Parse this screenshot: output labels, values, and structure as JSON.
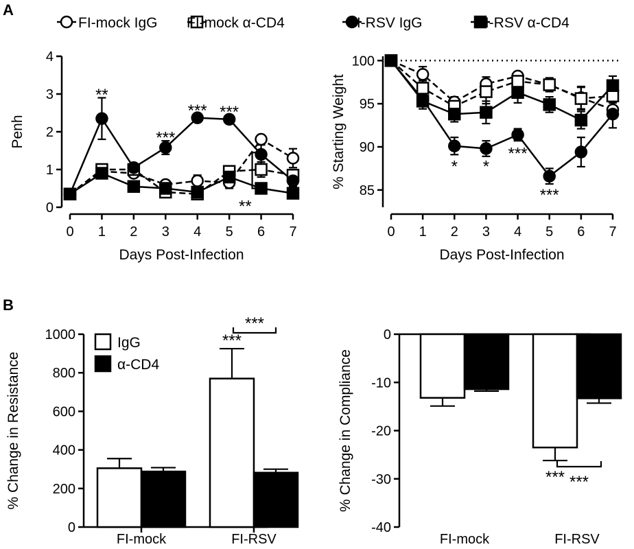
{
  "figure": {
    "panel_a_letter": "A",
    "panel_b_letter": "B",
    "legend_a": [
      {
        "label": "FI-mock IgG",
        "marker": "circle-open",
        "line": "dashed"
      },
      {
        "label": "FI-mock α-CD4",
        "marker": "square-open",
        "line": "dashed"
      },
      {
        "label": "FI-RSV IgG",
        "marker": "circle-filled",
        "line": "solid"
      },
      {
        "label": "FI-RSV α-CD4",
        "marker": "square-filled",
        "line": "solid"
      }
    ],
    "legend_b": [
      {
        "label": "IgG",
        "fill": "#ffffff"
      },
      {
        "label": "α-CD4",
        "fill": "#000000"
      }
    ]
  },
  "chart_data": [
    {
      "type": "line",
      "ylabel": "Penh",
      "xlabel": "Days Post-Infection",
      "ylim": [
        0,
        4
      ],
      "xlim": [
        0,
        7
      ],
      "x": [
        0,
        1,
        2,
        3,
        4,
        5,
        6,
        7
      ],
      "yticks": [
        "0",
        "1",
        "2",
        "3",
        "4"
      ],
      "xticks": [
        "0",
        "1",
        "2",
        "3",
        "4",
        "5",
        "6",
        "7"
      ],
      "series": [
        {
          "values": [
            0.35,
            0.95,
            0.9,
            0.6,
            0.7,
            0.65,
            1.8,
            1.3
          ],
          "err": [
            0.05,
            0.1,
            0.1,
            0.05,
            0.15,
            0.15,
            0.05,
            0.25
          ],
          "marker": "circle-open",
          "line": "dashed"
        },
        {
          "values": [
            0.35,
            1.0,
            1.0,
            0.4,
            0.35,
            0.95,
            1.0,
            0.85
          ],
          "err": [
            0.05,
            0.1,
            0.1,
            0.05,
            0.05,
            0.1,
            0.2,
            0.15
          ],
          "marker": "square-open",
          "line": "dashed"
        },
        {
          "values": [
            0.35,
            2.35,
            1.05,
            1.58,
            2.37,
            2.33,
            1.4,
            0.7
          ],
          "err": [
            0.05,
            0.55,
            0.1,
            0.18,
            0.05,
            0.05,
            0.25,
            0.15
          ],
          "marker": "circle-filled",
          "line": "solid"
        },
        {
          "values": [
            0.35,
            0.9,
            0.55,
            0.5,
            0.4,
            0.8,
            0.5,
            0.37
          ],
          "err": [
            0.05,
            0.1,
            0.05,
            0.05,
            0.05,
            0.1,
            0.05,
            0.05
          ],
          "marker": "square-filled",
          "line": "solid"
        }
      ],
      "annotations": [
        {
          "text": "**",
          "x": 1,
          "y": 3.02
        },
        {
          "text": "***",
          "x": 3,
          "y": 1.88
        },
        {
          "text": "***",
          "x": 4,
          "y": 2.6
        },
        {
          "text": "***",
          "x": 5,
          "y": 2.56
        },
        {
          "text": "**",
          "x": 5.5,
          "y": 0.06
        }
      ]
    },
    {
      "type": "line",
      "ylabel": "% Starting Weight",
      "xlabel": "Days Post-Infection",
      "ylim": [
        83,
        100.5
      ],
      "xlim": [
        0,
        7
      ],
      "x": [
        0,
        1,
        2,
        3,
        4,
        5,
        6,
        7
      ],
      "yticks": [
        "85",
        "90",
        "95",
        "100"
      ],
      "xticks": [
        "0",
        "1",
        "2",
        "3",
        "4",
        "5",
        "6",
        "7"
      ],
      "reference_line": 100,
      "series": [
        {
          "values": [
            100,
            98.4,
            95.2,
            97.3,
            98.2,
            97.2,
            95.7,
            94.3
          ],
          "err": [
            0.1,
            0.9,
            0.6,
            0.8,
            0.4,
            0.5,
            1.3,
            0.8
          ],
          "marker": "circle-open",
          "line": "dashed"
        },
        {
          "values": [
            100,
            96.8,
            94.7,
            96.4,
            97.6,
            97.2,
            95.6,
            95.9
          ],
          "err": [
            0.1,
            0.9,
            0.8,
            1.4,
            0.9,
            0.8,
            1.3,
            1.2
          ],
          "marker": "square-open",
          "line": "dashed"
        },
        {
          "values": [
            100,
            95.5,
            90.1,
            89.8,
            91.4,
            86.6,
            89.4,
            93.8
          ],
          "err": [
            0.1,
            0.6,
            1.0,
            0.9,
            0.7,
            0.9,
            1.7,
            1.6
          ],
          "marker": "circle-filled",
          "line": "solid"
        },
        {
          "values": [
            100,
            95.3,
            93.8,
            94.0,
            96.3,
            94.9,
            93.1,
            97.1
          ],
          "err": [
            0.1,
            0.9,
            0.9,
            1.3,
            1.2,
            0.9,
            1.0,
            1.1
          ],
          "marker": "square-filled",
          "line": "solid"
        }
      ],
      "annotations": [
        {
          "text": "*",
          "x": 2,
          "y": 87.9
        },
        {
          "text": "*",
          "x": 3,
          "y": 87.9
        },
        {
          "text": "***",
          "x": 4,
          "y": 89.4
        },
        {
          "text": "***",
          "x": 5,
          "y": 84.6
        }
      ]
    },
    {
      "type": "bar",
      "ylabel": "% Change in Resistance",
      "categories": [
        "FI-mock",
        "FI-RSV"
      ],
      "ylim": [
        0,
        1000
      ],
      "yticks": [
        "0",
        "200",
        "400",
        "600",
        "800",
        "1000"
      ],
      "series": [
        {
          "values": [
            305,
            770
          ],
          "err": [
            50,
            155
          ],
          "fill": "#ffffff"
        },
        {
          "values": [
            288,
            282
          ],
          "err": [
            20,
            18
          ],
          "fill": "#000000"
        }
      ],
      "annotations": [
        {
          "text": "***",
          "category": "FI-RSV",
          "series": 0
        },
        {
          "text": "***",
          "bracket": true
        }
      ]
    },
    {
      "type": "bar",
      "ylabel": "% Change in Compliance",
      "categories": [
        "FI-mock",
        "FI-RSV"
      ],
      "ylim": [
        -40,
        0
      ],
      "yticks": [
        "0",
        "-10",
        "-20",
        "-30",
        "-40"
      ],
      "series": [
        {
          "values": [
            -13.2,
            -23.5
          ],
          "err": [
            1.7,
            2.7
          ],
          "fill": "#ffffff"
        },
        {
          "values": [
            -11.4,
            -13.3
          ],
          "err": [
            0.4,
            1.0
          ],
          "fill": "#000000"
        }
      ],
      "annotations": [
        {
          "text": "***",
          "category": "FI-RSV",
          "series": 0
        },
        {
          "text": "***",
          "bracket": true
        }
      ]
    }
  ]
}
